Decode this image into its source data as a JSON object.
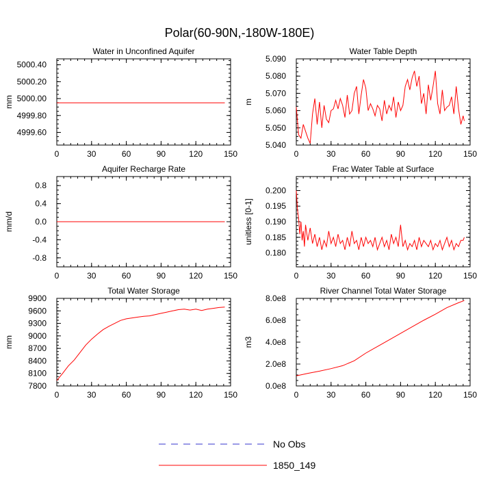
{
  "title": "Polar(60-90N,-180W-180E)",
  "colors": {
    "model": "#ff0000",
    "obs": "#3333cc",
    "axis": "#000000"
  },
  "legend": [
    {
      "label": "No Obs",
      "style": "dashed",
      "color": "#3333cc"
    },
    {
      "label": "1850_149",
      "style": "solid",
      "color": "#ff0000"
    }
  ],
  "chart_data": [
    {
      "id": "wa",
      "type": "line",
      "title": "Water in Unconfined Aquifer",
      "ylabel": "mm",
      "xlim": [
        0,
        150
      ],
      "ylim": [
        4999.45,
        5000.47
      ],
      "xticks": [
        0,
        30,
        60,
        90,
        120,
        150
      ],
      "yticks": [
        4999.6,
        4999.8,
        5000.0,
        5000.2,
        5000.4
      ],
      "yticklabels": [
        "4999.60",
        "4999.80",
        "5000.00",
        "5000.20",
        "5000.40"
      ],
      "series": [
        {
          "name": "1850_149",
          "x": [
            0,
            145
          ],
          "values": [
            4999.95,
            4999.95
          ]
        }
      ]
    },
    {
      "id": "wtd",
      "type": "line",
      "title": "Water Table Depth",
      "ylabel": "m",
      "xlim": [
        0,
        150
      ],
      "ylim": [
        5.04,
        5.09
      ],
      "xticks": [
        0,
        30,
        60,
        90,
        120,
        150
      ],
      "yticks": [
        5.04,
        5.05,
        5.06,
        5.07,
        5.08,
        5.09
      ],
      "yticklabels": [
        "5.040",
        "5.050",
        "5.060",
        "5.070",
        "5.080",
        "5.090"
      ],
      "series": [
        {
          "name": "1850_149",
          "x": [
            0,
            2,
            4,
            6,
            8,
            10,
            12,
            14,
            16,
            18,
            20,
            22,
            24,
            26,
            28,
            30,
            32,
            34,
            36,
            38,
            40,
            42,
            44,
            46,
            48,
            50,
            52,
            54,
            56,
            58,
            60,
            62,
            64,
            66,
            68,
            70,
            72,
            74,
            76,
            78,
            80,
            82,
            84,
            86,
            88,
            90,
            92,
            94,
            96,
            98,
            100,
            102,
            104,
            106,
            108,
            110,
            112,
            114,
            116,
            118,
            120,
            122,
            124,
            126,
            128,
            130,
            132,
            134,
            136,
            138,
            140,
            142,
            144,
            145
          ],
          "values": [
            5.062,
            5.046,
            5.044,
            5.052,
            5.048,
            5.044,
            5.041,
            5.058,
            5.067,
            5.052,
            5.065,
            5.05,
            5.063,
            5.055,
            5.053,
            5.06,
            5.061,
            5.066,
            5.061,
            5.067,
            5.063,
            5.056,
            5.069,
            5.058,
            5.06,
            5.07,
            5.074,
            5.058,
            5.069,
            5.078,
            5.073,
            5.06,
            5.064,
            5.061,
            5.057,
            5.063,
            5.061,
            5.054,
            5.066,
            5.058,
            5.063,
            5.06,
            5.068,
            5.056,
            5.065,
            5.06,
            5.063,
            5.074,
            5.078,
            5.072,
            5.079,
            5.083,
            5.074,
            5.08,
            5.064,
            5.07,
            5.058,
            5.075,
            5.066,
            5.074,
            5.083,
            5.064,
            5.058,
            5.072,
            5.06,
            5.062,
            5.063,
            5.068,
            5.058,
            5.074,
            5.061,
            5.052,
            5.057,
            5.054
          ]
        }
      ]
    },
    {
      "id": "arr",
      "type": "line",
      "title": "Aquifer Recharge Rate",
      "ylabel": "mm/d",
      "xlim": [
        0,
        150
      ],
      "ylim": [
        -1.0,
        1.0
      ],
      "xticks": [
        0,
        30,
        60,
        90,
        120,
        150
      ],
      "yticks": [
        -0.8,
        -0.4,
        0.0,
        0.4,
        0.8
      ],
      "yticklabels": [
        "-0.8",
        "-0.4",
        "0.0",
        "0.4",
        "0.8"
      ],
      "series": [
        {
          "name": "1850_149",
          "x": [
            0,
            145
          ],
          "values": [
            0.0,
            0.0
          ]
        }
      ]
    },
    {
      "id": "fwt",
      "type": "line",
      "title": "Frac Water Table at Surface",
      "ylabel": "unitless [0-1]",
      "xlim": [
        0,
        150
      ],
      "ylim": [
        0.1755,
        0.2045
      ],
      "xticks": [
        0,
        30,
        60,
        90,
        120,
        150
      ],
      "yticks": [
        0.18,
        0.185,
        0.19,
        0.195,
        0.2
      ],
      "yticklabels": [
        "0.180",
        "0.185",
        "0.190",
        "0.195",
        "0.200"
      ],
      "series": [
        {
          "name": "1850_149",
          "x": [
            0,
            1,
            2,
            3,
            4,
            5,
            6,
            7,
            8,
            10,
            12,
            14,
            16,
            18,
            20,
            22,
            24,
            26,
            28,
            30,
            32,
            34,
            36,
            38,
            40,
            42,
            44,
            46,
            48,
            50,
            52,
            54,
            56,
            58,
            60,
            62,
            64,
            66,
            68,
            70,
            72,
            74,
            76,
            78,
            80,
            82,
            84,
            86,
            88,
            90,
            92,
            94,
            96,
            98,
            100,
            102,
            104,
            106,
            108,
            110,
            112,
            114,
            116,
            118,
            120,
            122,
            124,
            126,
            128,
            130,
            132,
            134,
            136,
            138,
            140,
            142,
            144,
            145
          ],
          "values": [
            0.2,
            0.194,
            0.191,
            0.186,
            0.19,
            0.184,
            0.187,
            0.182,
            0.189,
            0.184,
            0.188,
            0.183,
            0.186,
            0.182,
            0.185,
            0.181,
            0.184,
            0.182,
            0.187,
            0.183,
            0.185,
            0.182,
            0.186,
            0.183,
            0.184,
            0.181,
            0.185,
            0.182,
            0.187,
            0.183,
            0.184,
            0.181,
            0.185,
            0.182,
            0.185,
            0.183,
            0.184,
            0.182,
            0.185,
            0.181,
            0.183,
            0.185,
            0.182,
            0.184,
            0.181,
            0.186,
            0.183,
            0.185,
            0.182,
            0.189,
            0.182,
            0.184,
            0.181,
            0.183,
            0.182,
            0.184,
            0.181,
            0.185,
            0.182,
            0.184,
            0.183,
            0.182,
            0.184,
            0.181,
            0.183,
            0.182,
            0.184,
            0.181,
            0.183,
            0.185,
            0.182,
            0.184,
            0.181,
            0.183,
            0.182,
            0.184,
            0.184,
            0.185
          ]
        }
      ]
    },
    {
      "id": "tws",
      "type": "line",
      "title": "Total Water Storage",
      "ylabel": "mm",
      "xlim": [
        0,
        150
      ],
      "ylim": [
        7800,
        9900
      ],
      "xticks": [
        0,
        30,
        60,
        90,
        120,
        150
      ],
      "yticks": [
        7800,
        8100,
        8400,
        8700,
        9000,
        9300,
        9600,
        9900
      ],
      "yticklabels": [
        "7800",
        "8100",
        "8400",
        "8700",
        "9000",
        "9300",
        "9600",
        "9900"
      ],
      "series": [
        {
          "name": "1850_149",
          "x": [
            0,
            5,
            10,
            15,
            20,
            25,
            30,
            35,
            40,
            45,
            50,
            55,
            60,
            65,
            70,
            75,
            80,
            85,
            90,
            95,
            100,
            105,
            110,
            115,
            120,
            125,
            130,
            135,
            140,
            145
          ],
          "values": [
            7930,
            8100,
            8280,
            8420,
            8600,
            8780,
            8920,
            9040,
            9150,
            9230,
            9300,
            9370,
            9410,
            9430,
            9450,
            9470,
            9480,
            9510,
            9540,
            9570,
            9600,
            9630,
            9640,
            9620,
            9640,
            9610,
            9640,
            9660,
            9680,
            9690
          ]
        }
      ]
    },
    {
      "id": "rcs",
      "type": "line",
      "title": "River Channel Total Water Storage",
      "ylabel": "m3",
      "xlim": [
        0,
        150
      ],
      "ylim": [
        0,
        800000000
      ],
      "xticks": [
        0,
        30,
        60,
        90,
        120,
        150
      ],
      "yticks": [
        0,
        200000000,
        400000000,
        600000000,
        800000000
      ],
      "yticklabels": [
        "0.0e8",
        "2.0e8",
        "4.0e8",
        "6.0e8",
        "8.0e8"
      ],
      "series": [
        {
          "name": "1850_149",
          "x": [
            0,
            10,
            20,
            30,
            40,
            50,
            60,
            70,
            80,
            90,
            100,
            110,
            120,
            130,
            140,
            145
          ],
          "values": [
            92000000,
            115000000,
            135000000,
            158000000,
            185000000,
            230000000,
            300000000,
            360000000,
            420000000,
            480000000,
            540000000,
            600000000,
            655000000,
            715000000,
            760000000,
            780000000
          ]
        }
      ]
    }
  ]
}
